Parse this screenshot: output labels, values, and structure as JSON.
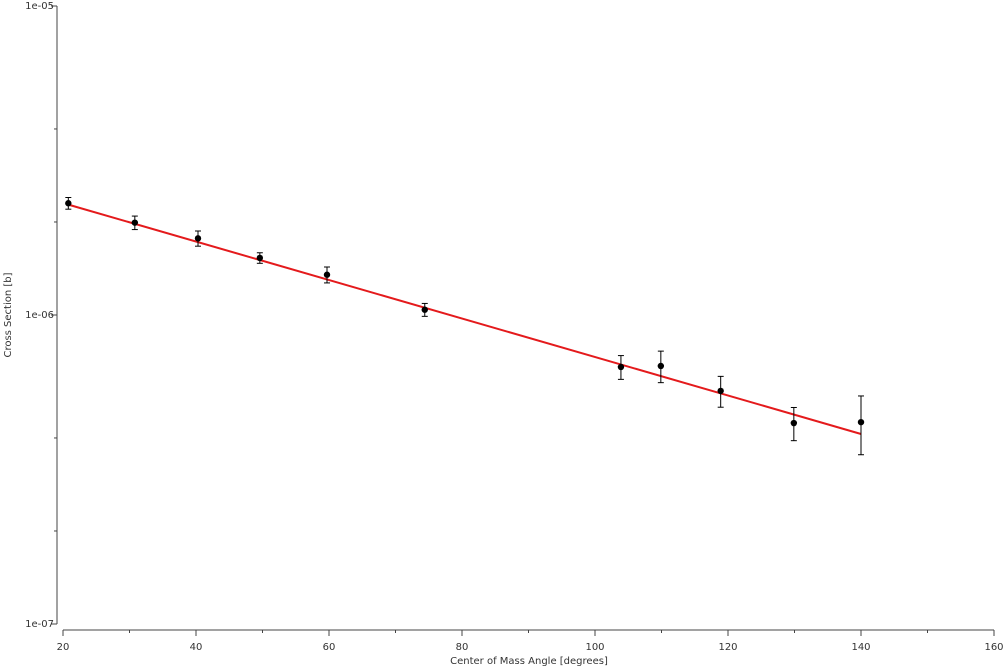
{
  "chart_data": {
    "type": "scatter",
    "x_label": "Center of Mass Angle [degrees]",
    "y_label": "Cross Section [b]",
    "xlim": [
      20,
      160
    ],
    "xticks": [
      20,
      40,
      60,
      80,
      100,
      120,
      140,
      160
    ],
    "xminorticks": [
      30,
      50,
      70,
      90,
      110,
      130,
      150
    ],
    "ylim": [
      1e-07,
      1e-05
    ],
    "ylog": true,
    "yticks": [
      {
        "value": 1e-07,
        "label": "1e-07"
      },
      {
        "value": 1e-06,
        "label": "1e-06"
      },
      {
        "value": 1e-05,
        "label": "1e-05"
      }
    ],
    "yminorticks": [
      2e-07,
      4e-07,
      2e-06,
      4e-06
    ],
    "grid": false,
    "series": [
      {
        "type": "scatter",
        "color": "#000000",
        "x": [
          20.8,
          30.8,
          40.3,
          49.6,
          59.7,
          74.4,
          103.9,
          109.9,
          118.9,
          129.9,
          140.0
        ],
        "values": [
          2.3e-06,
          1.99e-06,
          1.77e-06,
          1.53e-06,
          1.35e-06,
          1.04e-06,
          6.79e-07,
          6.84e-07,
          5.68e-07,
          4.47e-07,
          4.5e-07
        ],
        "errors": [
          1e-07,
          1e-07,
          1e-07,
          6e-08,
          8e-08,
          5e-08,
          6e-08,
          8e-08,
          6.5e-08,
          5.5e-08,
          9.7e-08
        ]
      },
      {
        "type": "line",
        "color": "#e41a1c",
        "x": [
          21,
          140
        ],
        "values": [
          2.27e-06,
          4.12e-07
        ]
      }
    ]
  }
}
